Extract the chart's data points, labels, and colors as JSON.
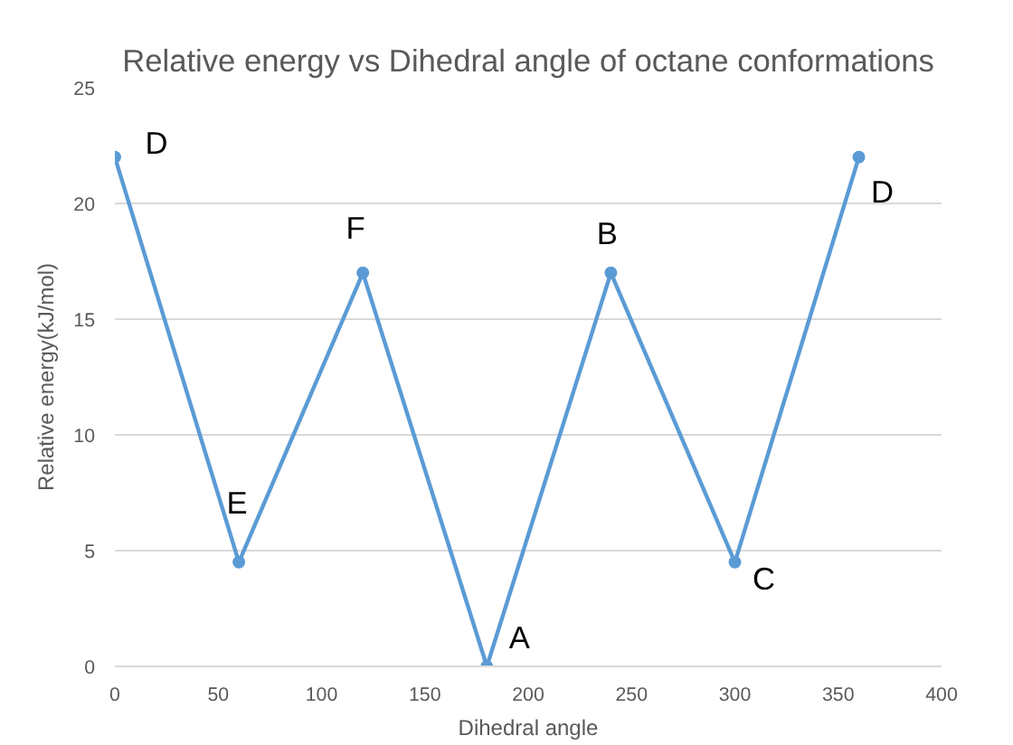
{
  "chart_data": {
    "type": "line",
    "title": "Relative energy vs Dihedral angle of octane conformations",
    "xlabel": "Dihedral angle",
    "ylabel": "Relative energy(kJ/mol)",
    "x": [
      0,
      60,
      120,
      180,
      240,
      300,
      360
    ],
    "series": [
      {
        "color": "#5b9bd5",
        "values": [
          22,
          4.5,
          17,
          0,
          17,
          4.5,
          22
        ]
      }
    ],
    "xlim": [
      0,
      400
    ],
    "xticks": [
      0,
      50,
      100,
      150,
      200,
      250,
      300,
      350,
      400
    ],
    "ylim": [
      0,
      25
    ],
    "yticks": [
      0,
      5,
      10,
      15,
      20,
      25
    ],
    "grid": "y",
    "marker": "circle",
    "line_style": "solid",
    "annotations": [
      {
        "text": "D",
        "x": 0,
        "y": 22
      },
      {
        "text": "E",
        "x": 60,
        "y": 4.5
      },
      {
        "text": "F",
        "x": 120,
        "y": 17
      },
      {
        "text": "A",
        "x": 180,
        "y": 0
      },
      {
        "text": "B",
        "x": 240,
        "y": 17
      },
      {
        "text": "C",
        "x": 300,
        "y": 4.5
      },
      {
        "text": "D",
        "x": 360,
        "y": 22
      }
    ]
  }
}
